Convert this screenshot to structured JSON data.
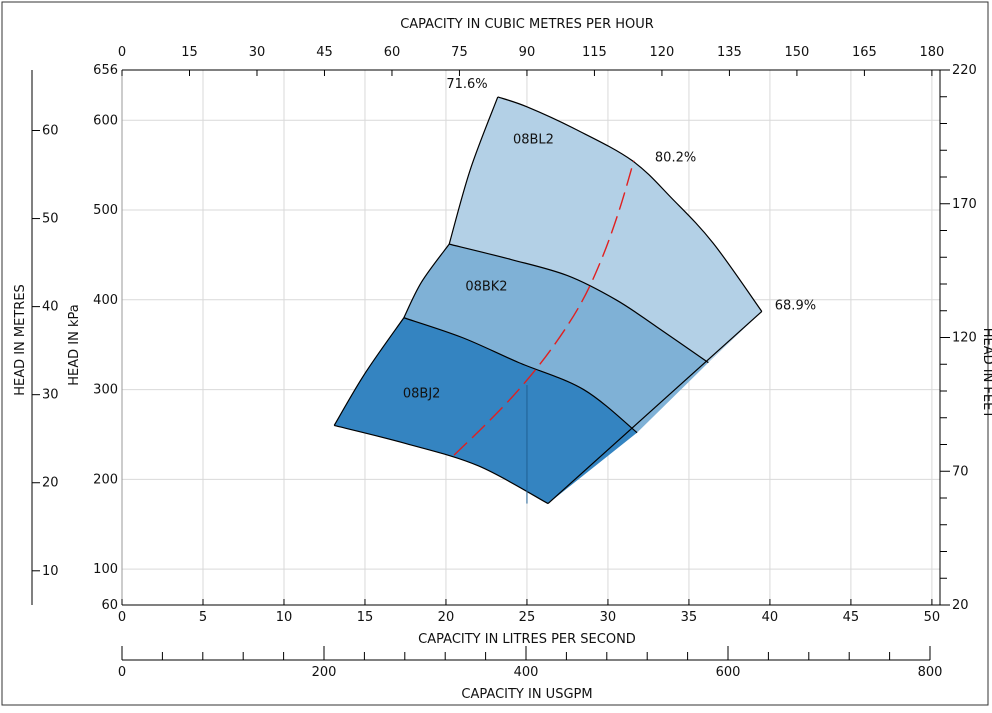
{
  "chart_data": {
    "type": "area",
    "x_lps": {
      "title": "CAPACITY IN LITRES PER SECOND",
      "range": [
        0,
        50.5
      ],
      "ticks": [
        0,
        5,
        10,
        15,
        20,
        25,
        30,
        35,
        40,
        45,
        50
      ]
    },
    "x_m3h": {
      "title": "CAPACITY IN CUBIC METRES PER HOUR",
      "ticks": [
        0,
        15,
        30,
        45,
        60,
        75,
        90,
        115,
        120,
        135,
        150,
        165,
        180
      ]
    },
    "x_usgpm": {
      "title": "CAPACITY IN USGPM",
      "range": [
        0,
        800
      ],
      "labeled_ticks": [
        0,
        200,
        400,
        600,
        800
      ],
      "minor_step": 40
    },
    "y_kpa": {
      "title": "HEAD IN kPa",
      "range": [
        60,
        656
      ],
      "ticks": [
        60,
        100,
        200,
        300,
        400,
        500,
        600,
        656
      ]
    },
    "y_m": {
      "title": "HEAD IN METRES",
      "ticks": [
        10,
        20,
        30,
        40,
        50,
        60
      ]
    },
    "y_ft": {
      "title": "HEAD IN FEET",
      "range": [
        20,
        220
      ],
      "labeled_ticks": [
        20,
        70,
        120,
        170,
        220
      ],
      "minor_step": 10
    },
    "series": [
      {
        "name": "08BL2",
        "color": "#b3d0e6",
        "top": [
          [
            23.2,
            626
          ],
          [
            25,
            615
          ],
          [
            28,
            590
          ],
          [
            31.5,
            555
          ],
          [
            34,
            512
          ],
          [
            36.5,
            463
          ],
          [
            39.5,
            387
          ]
        ],
        "left": [
          [
            23.2,
            626
          ],
          [
            21.5,
            545
          ],
          [
            20.2,
            462
          ]
        ],
        "bottom": [
          [
            20.2,
            462
          ],
          [
            24,
            445
          ],
          [
            27.5,
            427
          ],
          [
            30.5,
            400
          ],
          [
            33,
            370
          ],
          [
            36.2,
            330
          ]
        ]
      },
      {
        "name": "08BK2",
        "color": "#7fb1d6",
        "top": [
          [
            20.2,
            462
          ],
          [
            24,
            445
          ],
          [
            27.5,
            427
          ],
          [
            30.5,
            400
          ],
          [
            33,
            370
          ],
          [
            36.2,
            330
          ]
        ],
        "left": [
          [
            20.2,
            462
          ],
          [
            18.5,
            420
          ],
          [
            17.4,
            380
          ]
        ],
        "bottom": [
          [
            17.4,
            380
          ],
          [
            21,
            358
          ],
          [
            24.5,
            330
          ],
          [
            28.5,
            300
          ],
          [
            31.8,
            252
          ]
        ]
      },
      {
        "name": "08BJ2",
        "color": "#3484c1",
        "top": [
          [
            17.4,
            380
          ],
          [
            21,
            358
          ],
          [
            24.5,
            330
          ],
          [
            28.5,
            300
          ],
          [
            31.8,
            252
          ]
        ],
        "left": [
          [
            17.4,
            380
          ],
          [
            15,
            318
          ],
          [
            13.1,
            260
          ]
        ],
        "bottom": [
          [
            13.1,
            260
          ],
          [
            17.5,
            240
          ],
          [
            22,
            215
          ],
          [
            26.3,
            173
          ]
        ]
      }
    ],
    "efficiency_labels": [
      {
        "text": "71.6%",
        "x": 21.3,
        "y": 640
      },
      {
        "text": "80.2%",
        "x": 32.9,
        "y": 558
      },
      {
        "text": "68.9%",
        "x": 40.3,
        "y": 393
      }
    ],
    "bep_line": {
      "color": "#e02020",
      "points": [
        [
          20.5,
          227
        ],
        [
          22.5,
          262
        ],
        [
          24.5,
          300
        ],
        [
          26.5,
          345
        ],
        [
          28.3,
          395
        ],
        [
          29.6,
          445
        ],
        [
          30.7,
          500
        ],
        [
          31.6,
          555
        ]
      ]
    },
    "internal_vertical": {
      "x": 25,
      "y0": 173,
      "y1": 305
    }
  }
}
